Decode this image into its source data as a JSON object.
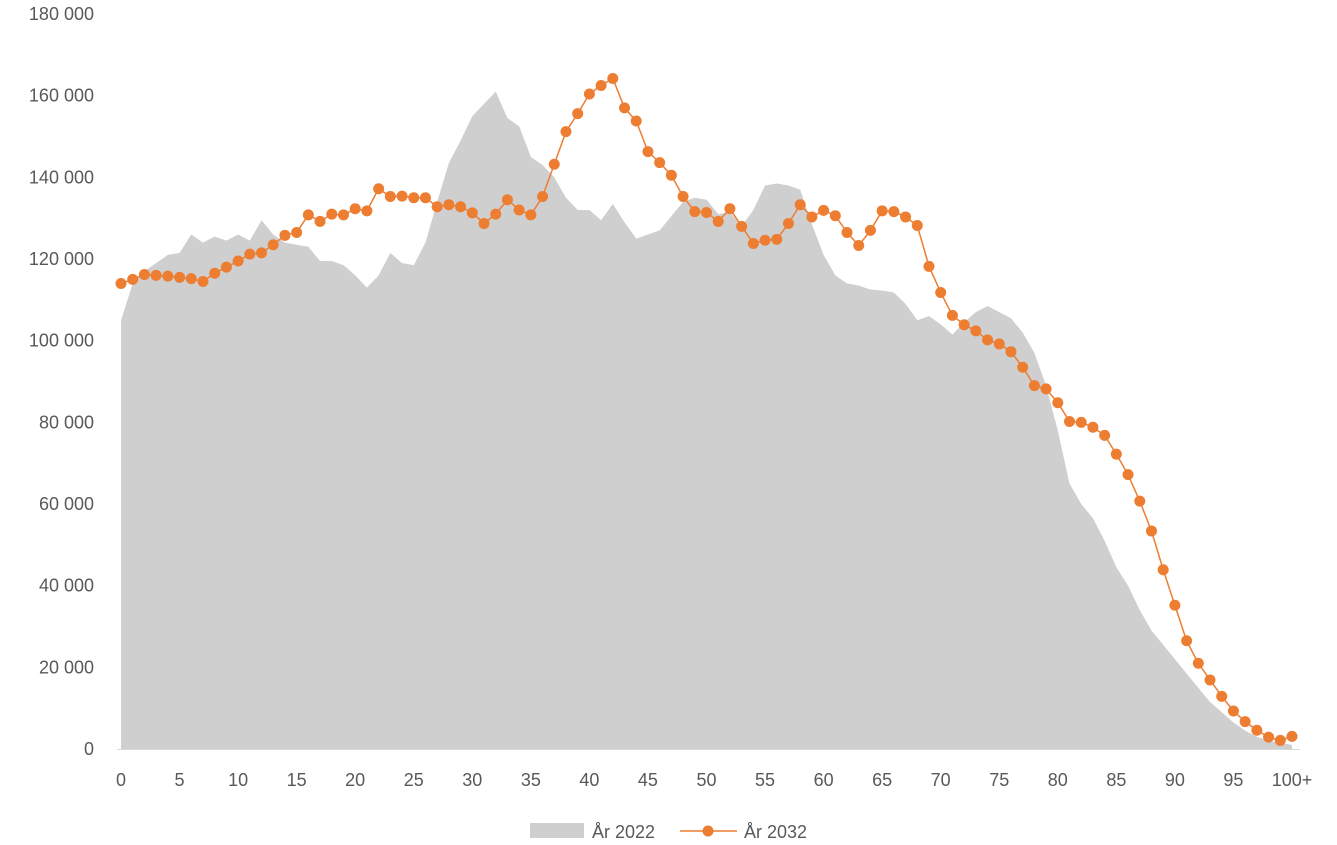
{
  "chart_data": {
    "type": "area+line",
    "title": "",
    "xlabel": "",
    "ylabel": "",
    "ylim": [
      0,
      180000
    ],
    "y_ticks": [
      "0",
      "20 000",
      "40 000",
      "60 000",
      "80 000",
      "100 000",
      "120 000",
      "140 000",
      "160 000",
      "180 000"
    ],
    "y_tick_values": [
      0,
      20000,
      40000,
      60000,
      80000,
      100000,
      120000,
      140000,
      160000,
      180000
    ],
    "x_ticks": [
      "0",
      "5",
      "10",
      "15",
      "20",
      "25",
      "30",
      "35",
      "40",
      "45",
      "50",
      "55",
      "60",
      "65",
      "70",
      "75",
      "80",
      "85",
      "90",
      "95",
      "100+"
    ],
    "x_tick_values": [
      0,
      5,
      10,
      15,
      20,
      25,
      30,
      35,
      40,
      45,
      50,
      55,
      60,
      65,
      70,
      75,
      80,
      85,
      90,
      95,
      100
    ],
    "x": [
      0,
      1,
      2,
      3,
      4,
      5,
      6,
      7,
      8,
      9,
      10,
      11,
      12,
      13,
      14,
      15,
      16,
      17,
      18,
      19,
      20,
      21,
      22,
      23,
      24,
      25,
      26,
      27,
      28,
      29,
      30,
      31,
      32,
      33,
      34,
      35,
      36,
      37,
      38,
      39,
      40,
      41,
      42,
      43,
      44,
      45,
      46,
      47,
      48,
      49,
      50,
      51,
      52,
      53,
      54,
      55,
      56,
      57,
      58,
      59,
      60,
      61,
      62,
      63,
      64,
      65,
      66,
      67,
      68,
      69,
      70,
      71,
      72,
      73,
      74,
      75,
      76,
      77,
      78,
      79,
      80,
      81,
      82,
      83,
      84,
      85,
      86,
      87,
      88,
      89,
      90,
      91,
      92,
      93,
      94,
      95,
      96,
      97,
      98,
      99,
      100
    ],
    "grid": false,
    "legend_position": "bottom",
    "series": [
      {
        "name": "År 2022",
        "type": "area",
        "color": "#d0cfd0",
        "values": [
          105000,
          114000,
          117000,
          119000,
          121000,
          121500,
          126000,
          124000,
          125500,
          124500,
          126000,
          124500,
          129500,
          126000,
          124000,
          123500,
          123000,
          119500,
          119500,
          118500,
          116000,
          113000,
          116000,
          121500,
          119000,
          118500,
          124000,
          134000,
          143500,
          149000,
          155000,
          158000,
          161000,
          154500,
          152500,
          145000,
          143000,
          140000,
          135000,
          132000,
          132000,
          129500,
          133500,
          129000,
          125000,
          126000,
          127000,
          130500,
          134000,
          135000,
          134500,
          131000,
          131500,
          128000,
          132000,
          138000,
          138500,
          138000,
          137000,
          128500,
          121000,
          116000,
          114000,
          113500,
          112500,
          112300,
          111800,
          109000,
          105000,
          106000,
          104000,
          101500,
          104500,
          107000,
          108500,
          107000,
          105500,
          102000,
          97000,
          89000,
          78000,
          65000,
          60000,
          56500,
          51000,
          44500,
          40000,
          34000,
          29000,
          25500,
          22000,
          18500,
          15000,
          11500,
          9000,
          6500,
          4500,
          3000,
          2000,
          1500,
          1000
        ]
      },
      {
        "name": "År 2032",
        "type": "line",
        "color": "#ed7d31",
        "values": [
          114000,
          115000,
          116200,
          116000,
          115800,
          115500,
          115200,
          114500,
          116500,
          118000,
          119500,
          121200,
          121500,
          123500,
          125800,
          126500,
          130800,
          129200,
          131000,
          130800,
          132300,
          131800,
          137200,
          135300,
          135400,
          135000,
          135000,
          132800,
          133300,
          132800,
          131300,
          128700,
          131000,
          134500,
          132000,
          130800,
          135300,
          143200,
          151200,
          155600,
          160400,
          162500,
          164200,
          157000,
          153800,
          146300,
          143600,
          140500,
          135300,
          131600,
          131400,
          129200,
          132300,
          128000,
          123800,
          124600,
          124800,
          128700,
          133300,
          130300,
          131900,
          130600,
          126500,
          123300,
          127000,
          131800,
          131600,
          130300,
          128200,
          118200,
          111800,
          106200,
          103900,
          102400,
          100200,
          99200,
          97300,
          93500,
          89000,
          88200,
          84800,
          80200,
          80000,
          78800,
          76800,
          72200,
          67200,
          60700,
          53400,
          43900,
          35200,
          26500,
          21000,
          16900,
          12900,
          9300,
          6700,
          4600,
          2900,
          2100,
          3100
        ]
      }
    ]
  }
}
